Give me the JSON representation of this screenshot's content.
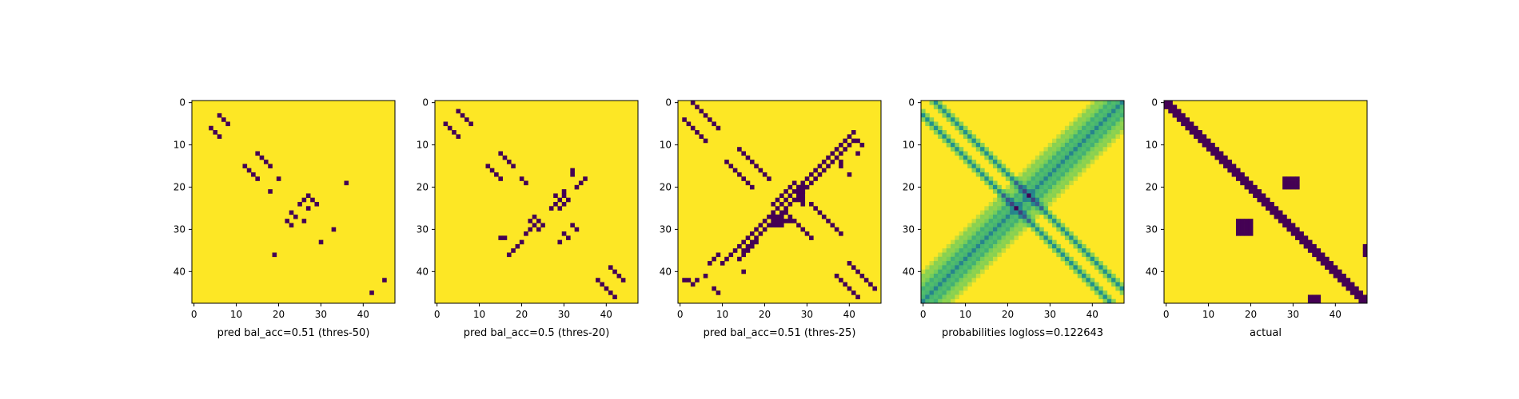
{
  "colors": {
    "background": "#fde725",
    "mark": "#440154",
    "viridis": [
      "#440154",
      "#3b528b",
      "#21918c",
      "#5ec962",
      "#fde725"
    ]
  },
  "chart_data": [
    {
      "type": "heatmap",
      "xlabel": "pred bal_acc=0.51 (thres-50)",
      "size": 48,
      "xticks": [
        0,
        10,
        20,
        30,
        40
      ],
      "yticks": [
        0,
        10,
        20,
        30,
        40
      ],
      "colormap": "viridis",
      "cells": [
        [
          3,
          6
        ],
        [
          4,
          7
        ],
        [
          5,
          8
        ],
        [
          6,
          4
        ],
        [
          7,
          5
        ],
        [
          8,
          6
        ],
        [
          12,
          15
        ],
        [
          13,
          16
        ],
        [
          14,
          17
        ],
        [
          15,
          18
        ],
        [
          15,
          12
        ],
        [
          16,
          13
        ],
        [
          17,
          14
        ],
        [
          18,
          15
        ],
        [
          18,
          20
        ],
        [
          19,
          36
        ],
        [
          21,
          18
        ],
        [
          22,
          27
        ],
        [
          23,
          26
        ],
        [
          23,
          28
        ],
        [
          24,
          25
        ],
        [
          24,
          29
        ],
        [
          25,
          27
        ],
        [
          26,
          23
        ],
        [
          27,
          24
        ],
        [
          28,
          22
        ],
        [
          28,
          26
        ],
        [
          29,
          23
        ],
        [
          30,
          33
        ],
        [
          33,
          30
        ],
        [
          36,
          19
        ],
        [
          42,
          45
        ],
        [
          45,
          42
        ]
      ]
    },
    {
      "type": "heatmap",
      "xlabel": "pred bal_acc=0.5 (thres-20)",
      "size": 48,
      "xticks": [
        0,
        10,
        20,
        30,
        40
      ],
      "yticks": [
        0,
        10,
        20,
        30,
        40
      ],
      "colormap": "viridis",
      "cells": [
        [
          2,
          5
        ],
        [
          3,
          6
        ],
        [
          4,
          7
        ],
        [
          5,
          8
        ],
        [
          5,
          2
        ],
        [
          6,
          3
        ],
        [
          7,
          4
        ],
        [
          8,
          5
        ],
        [
          12,
          15
        ],
        [
          13,
          16
        ],
        [
          14,
          17
        ],
        [
          15,
          18
        ],
        [
          15,
          12
        ],
        [
          16,
          13
        ],
        [
          17,
          14
        ],
        [
          18,
          15
        ],
        [
          18,
          20
        ],
        [
          19,
          21
        ],
        [
          16,
          32
        ],
        [
          17,
          32
        ],
        [
          18,
          35
        ],
        [
          19,
          34
        ],
        [
          20,
          33
        ],
        [
          21,
          30
        ],
        [
          22,
          28
        ],
        [
          22,
          30
        ],
        [
          23,
          29
        ],
        [
          23,
          31
        ],
        [
          24,
          28
        ],
        [
          24,
          30
        ],
        [
          25,
          27
        ],
        [
          25,
          29
        ],
        [
          27,
          23
        ],
        [
          28,
          22
        ],
        [
          28,
          24
        ],
        [
          29,
          23
        ],
        [
          29,
          25
        ],
        [
          30,
          22
        ],
        [
          30,
          24
        ],
        [
          31,
          21
        ],
        [
          32,
          15
        ],
        [
          32,
          16
        ],
        [
          33,
          20
        ],
        [
          34,
          19
        ],
        [
          35,
          18
        ],
        [
          36,
          17
        ],
        [
          29,
          32
        ],
        [
          30,
          33
        ],
        [
          31,
          30
        ],
        [
          32,
          31
        ],
        [
          33,
          29
        ],
        [
          39,
          41
        ],
        [
          40,
          42
        ],
        [
          41,
          43
        ],
        [
          42,
          44
        ],
        [
          42,
          38
        ],
        [
          43,
          39
        ],
        [
          44,
          40
        ],
        [
          45,
          41
        ],
        [
          46,
          42
        ]
      ]
    },
    {
      "type": "heatmap",
      "xlabel": "pred bal_acc=0.51 (thres-25)",
      "size": 48,
      "xticks": [
        0,
        10,
        20,
        30,
        40
      ],
      "yticks": [
        0,
        10,
        20,
        30,
        40
      ],
      "colormap": "viridis",
      "cells": [
        [
          0,
          3
        ],
        [
          1,
          4
        ],
        [
          2,
          5
        ],
        [
          3,
          6
        ],
        [
          4,
          7
        ],
        [
          5,
          8
        ],
        [
          6,
          9
        ],
        [
          4,
          1
        ],
        [
          5,
          2
        ],
        [
          6,
          3
        ],
        [
          7,
          4
        ],
        [
          8,
          5
        ],
        [
          9,
          6
        ],
        [
          11,
          14
        ],
        [
          12,
          15
        ],
        [
          13,
          16
        ],
        [
          14,
          17
        ],
        [
          15,
          18
        ],
        [
          16,
          19
        ],
        [
          17,
          20
        ],
        [
          18,
          21
        ],
        [
          14,
          11
        ],
        [
          15,
          12
        ],
        [
          16,
          13
        ],
        [
          17,
          14
        ],
        [
          18,
          15
        ],
        [
          19,
          16
        ],
        [
          20,
          17
        ],
        [
          7,
          41
        ],
        [
          8,
          40
        ],
        [
          9,
          39
        ],
        [
          10,
          38
        ],
        [
          11,
          37
        ],
        [
          12,
          36
        ],
        [
          13,
          35
        ],
        [
          14,
          34
        ],
        [
          15,
          33
        ],
        [
          16,
          32
        ],
        [
          17,
          31
        ],
        [
          18,
          30
        ],
        [
          19,
          29
        ],
        [
          20,
          28
        ],
        [
          9,
          41
        ],
        [
          10,
          40
        ],
        [
          11,
          39
        ],
        [
          12,
          38
        ],
        [
          13,
          37
        ],
        [
          14,
          36
        ],
        [
          15,
          35
        ],
        [
          16,
          34
        ],
        [
          17,
          33
        ],
        [
          18,
          32
        ],
        [
          19,
          31
        ],
        [
          20,
          30
        ],
        [
          21,
          29
        ],
        [
          19,
          27
        ],
        [
          20,
          26
        ],
        [
          21,
          25
        ],
        [
          22,
          24
        ],
        [
          23,
          23
        ],
        [
          24,
          22
        ],
        [
          21,
          27
        ],
        [
          22,
          26
        ],
        [
          23,
          25
        ],
        [
          24,
          24
        ],
        [
          25,
          23
        ],
        [
          26,
          22
        ],
        [
          27,
          21
        ],
        [
          28,
          20
        ],
        [
          29,
          19
        ],
        [
          30,
          18
        ],
        [
          31,
          17
        ],
        [
          32,
          16
        ],
        [
          33,
          15
        ],
        [
          34,
          14
        ],
        [
          35,
          13
        ],
        [
          36,
          12
        ],
        [
          37,
          11
        ],
        [
          38,
          10
        ],
        [
          22,
          28
        ],
        [
          23,
          27
        ],
        [
          24,
          26
        ],
        [
          25,
          25
        ],
        [
          26,
          24
        ],
        [
          27,
          23
        ],
        [
          28,
          22
        ],
        [
          29,
          21
        ],
        [
          30,
          20
        ],
        [
          31,
          19
        ],
        [
          32,
          18
        ],
        [
          33,
          17
        ],
        [
          34,
          16
        ],
        [
          35,
          15
        ],
        [
          20,
          28
        ],
        [
          21,
          28
        ],
        [
          22,
          28
        ],
        [
          23,
          28
        ],
        [
          20,
          29
        ],
        [
          21,
          29
        ],
        [
          22,
          29
        ],
        [
          23,
          29
        ],
        [
          24,
          29
        ],
        [
          26,
          22
        ],
        [
          27,
          22
        ],
        [
          28,
          22
        ],
        [
          29,
          22
        ],
        [
          27,
          23
        ],
        [
          28,
          23
        ],
        [
          29,
          23
        ],
        [
          27,
          24
        ],
        [
          28,
          24
        ],
        [
          29,
          24
        ],
        [
          28,
          25
        ],
        [
          28,
          26
        ],
        [
          14,
          38
        ],
        [
          15,
          38
        ],
        [
          17,
          40
        ],
        [
          12,
          42
        ],
        [
          10,
          43
        ],
        [
          9,
          42
        ],
        [
          26,
          25
        ],
        [
          27,
          26
        ],
        [
          28,
          27
        ],
        [
          29,
          28
        ],
        [
          30,
          29
        ],
        [
          31,
          30
        ],
        [
          32,
          31
        ],
        [
          24,
          31
        ],
        [
          25,
          32
        ],
        [
          26,
          33
        ],
        [
          27,
          34
        ],
        [
          28,
          35
        ],
        [
          29,
          36
        ],
        [
          30,
          37
        ],
        [
          31,
          38
        ],
        [
          33,
          18
        ],
        [
          34,
          17
        ],
        [
          35,
          16
        ],
        [
          36,
          15
        ],
        [
          37,
          14
        ],
        [
          36,
          9
        ],
        [
          37,
          8
        ],
        [
          38,
          7
        ],
        [
          42,
          1
        ],
        [
          42,
          2
        ],
        [
          43,
          3
        ],
        [
          42,
          4
        ],
        [
          41,
          6
        ],
        [
          44,
          8
        ],
        [
          45,
          9
        ],
        [
          40,
          15
        ],
        [
          38,
          40
        ],
        [
          39,
          41
        ],
        [
          40,
          42
        ],
        [
          41,
          43
        ],
        [
          42,
          44
        ],
        [
          43,
          45
        ],
        [
          44,
          46
        ],
        [
          41,
          37
        ],
        [
          42,
          38
        ],
        [
          43,
          39
        ],
        [
          44,
          40
        ],
        [
          45,
          41
        ],
        [
          46,
          42
        ]
      ]
    },
    {
      "type": "heatmap",
      "xlabel": "probabilities logloss=0.122643",
      "size": 48,
      "xticks": [
        0,
        10,
        20,
        30,
        40
      ],
      "yticks": [
        0,
        10,
        20,
        30,
        40
      ],
      "colormap": "viridis",
      "value_range": [
        0,
        1
      ]
    },
    {
      "type": "heatmap",
      "xlabel": "actual",
      "size": 48,
      "xticks": [
        0,
        10,
        20,
        30,
        40
      ],
      "yticks": [
        0,
        10,
        20,
        30,
        40
      ],
      "colormap": "viridis",
      "band": {
        "start_col": 0,
        "thickness": 3,
        "rows": [
          0,
          47
        ]
      },
      "blocks": [
        {
          "rows": [
            18,
            20
          ],
          "cols": [
            28,
            31
          ]
        },
        {
          "rows": [
            28,
            31
          ],
          "cols": [
            17,
            20
          ]
        },
        {
          "rows": [
            34,
            36
          ],
          "cols": [
            47,
            47
          ]
        },
        {
          "rows": [
            46,
            47
          ],
          "cols": [
            34,
            36
          ]
        }
      ]
    }
  ]
}
